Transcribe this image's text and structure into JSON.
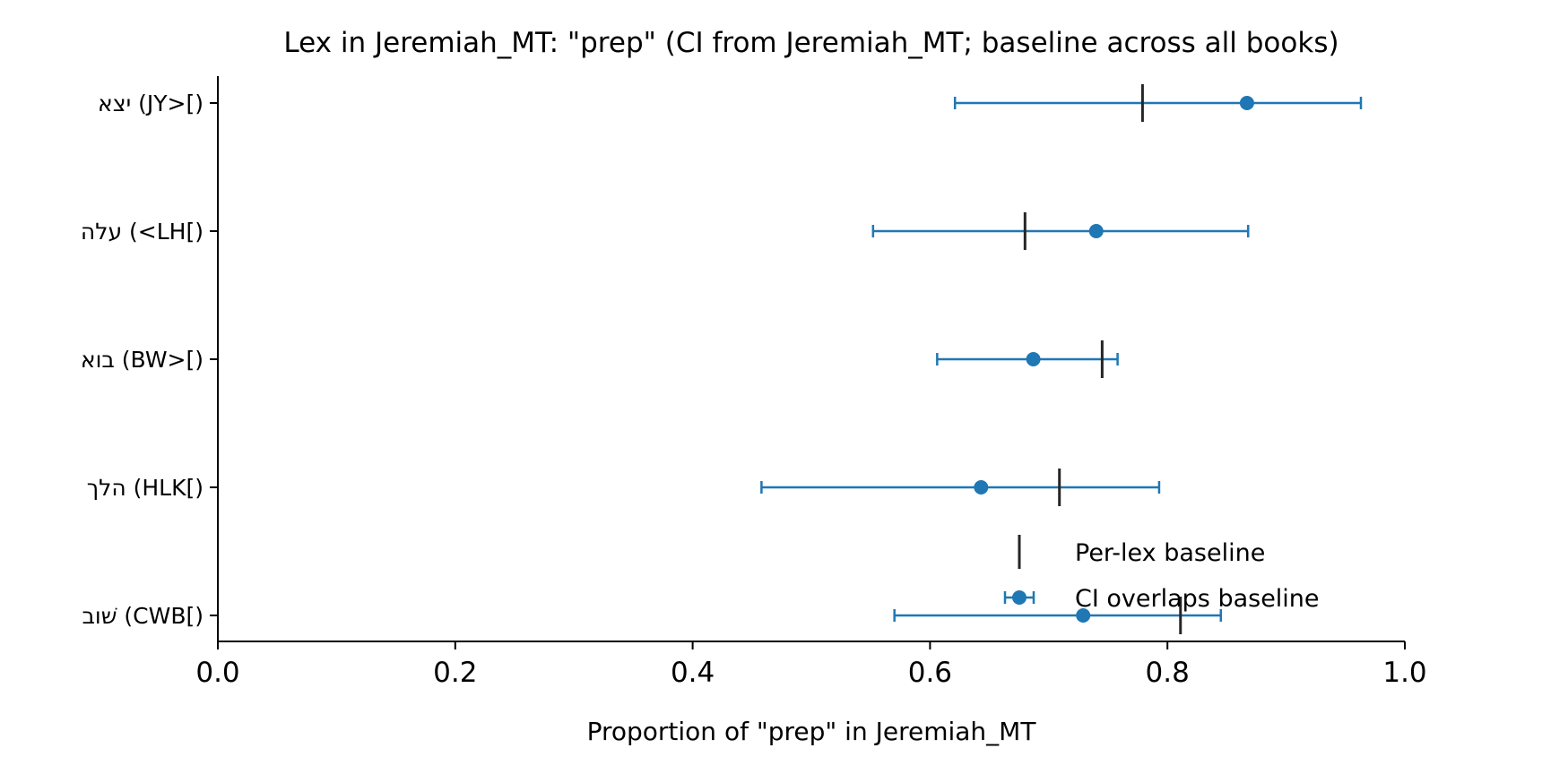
{
  "chart_data": {
    "type": "scatter",
    "title": "Lex in Jeremiah_MT: \"prep\" (CI from Jeremiah_MT; baseline across all books)",
    "xlabel": "Proportion of \"prep\" in Jeremiah_MT",
    "ylabel": "",
    "xlim": [
      0.0,
      1.0
    ],
    "xticks": [
      "0.0",
      "0.2",
      "0.4",
      "0.6",
      "0.8",
      "1.0"
    ],
    "grid": false,
    "legend_position": "lower-right",
    "colors": {
      "ci": "#1f77b4",
      "baseline": "#262626"
    },
    "categories": [
      {
        "label": "יצא (JY>[)",
        "estimate": 0.867,
        "ci_low": 0.621,
        "ci_high": 0.963,
        "baseline": 0.779
      },
      {
        "label": "עלה (<LH[)",
        "estimate": 0.74,
        "ci_low": 0.552,
        "ci_high": 0.868,
        "baseline": 0.68
      },
      {
        "label": "בוא (BW>[)",
        "estimate": 0.687,
        "ci_low": 0.606,
        "ci_high": 0.758,
        "baseline": 0.745
      },
      {
        "label": "הלך (HLK[)",
        "estimate": 0.643,
        "ci_low": 0.458,
        "ci_high": 0.793,
        "baseline": 0.709
      },
      {
        "label": "שׁוב (CWB[)",
        "estimate": 0.729,
        "ci_low": 0.57,
        "ci_high": 0.845,
        "baseline": 0.811
      }
    ],
    "legend": [
      {
        "label": "Per-lex baseline",
        "marker": "vertical-line"
      },
      {
        "label": "CI overlaps baseline",
        "marker": "point-errorbar"
      }
    ]
  }
}
